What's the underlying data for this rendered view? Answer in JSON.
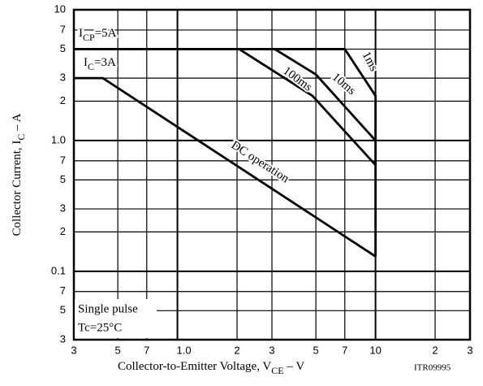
{
  "chart_data": {
    "type": "line",
    "xscale": "log",
    "yscale": "log",
    "grid": true,
    "color": "#000000",
    "xlim": [
      0.3,
      30
    ],
    "ylim": [
      0.03,
      10
    ],
    "xticks": [
      {
        "value": 0.3,
        "label": "3"
      },
      {
        "value": 0.5,
        "label": "5"
      },
      {
        "value": 0.7,
        "label": "7"
      },
      {
        "value": 1,
        "label": "1.0"
      },
      2,
      3,
      5,
      7,
      10,
      {
        "value": 20,
        "label": "2"
      },
      {
        "value": 30,
        "label": "3"
      }
    ],
    "yticks": [
      {
        "value": 0.03,
        "label": "3"
      },
      {
        "value": 0.05,
        "label": "5"
      },
      {
        "value": 0.07,
        "label": "7"
      },
      0.1,
      {
        "value": 0.2,
        "label": "2"
      },
      {
        "value": 0.3,
        "label": "3"
      },
      {
        "value": 0.5,
        "label": "5"
      },
      {
        "value": 0.7,
        "label": "7"
      },
      {
        "value": 1,
        "label": "1.0"
      },
      2,
      3,
      5,
      7,
      10
    ],
    "x_label": {
      "main": "Collector-to-Emitter Voltage, V",
      "sub": "CE",
      "rest": " – V"
    },
    "y_label": {
      "main": "Collector Current, I",
      "sub": "C",
      "rest": " – A"
    },
    "code": "ITR09995",
    "annotations": [
      {
        "main": "I",
        "sub": "CP",
        "rest": "=5A"
      },
      {
        "main": "I",
        "sub": "C",
        "rest": "=3A"
      }
    ],
    "notes": [
      "Single pulse",
      "Tc=25°C"
    ],
    "series": [
      {
        "name": "DC operation",
        "x": [
          0.3,
          0.42,
          10
        ],
        "values": [
          3,
          3,
          0.13
        ]
      },
      {
        "name": "100ms",
        "x": [
          2.05,
          4.8,
          10
        ],
        "values": [
          5,
          2.2,
          0.65
        ]
      },
      {
        "name": "10ms",
        "x": [
          3.1,
          5,
          10
        ],
        "values": [
          5,
          3.2,
          1.0
        ]
      },
      {
        "name": "1ms",
        "x": [
          0.3,
          7,
          10,
          10
        ],
        "values": [
          5,
          5,
          2.2,
          0.13
        ]
      }
    ]
  }
}
